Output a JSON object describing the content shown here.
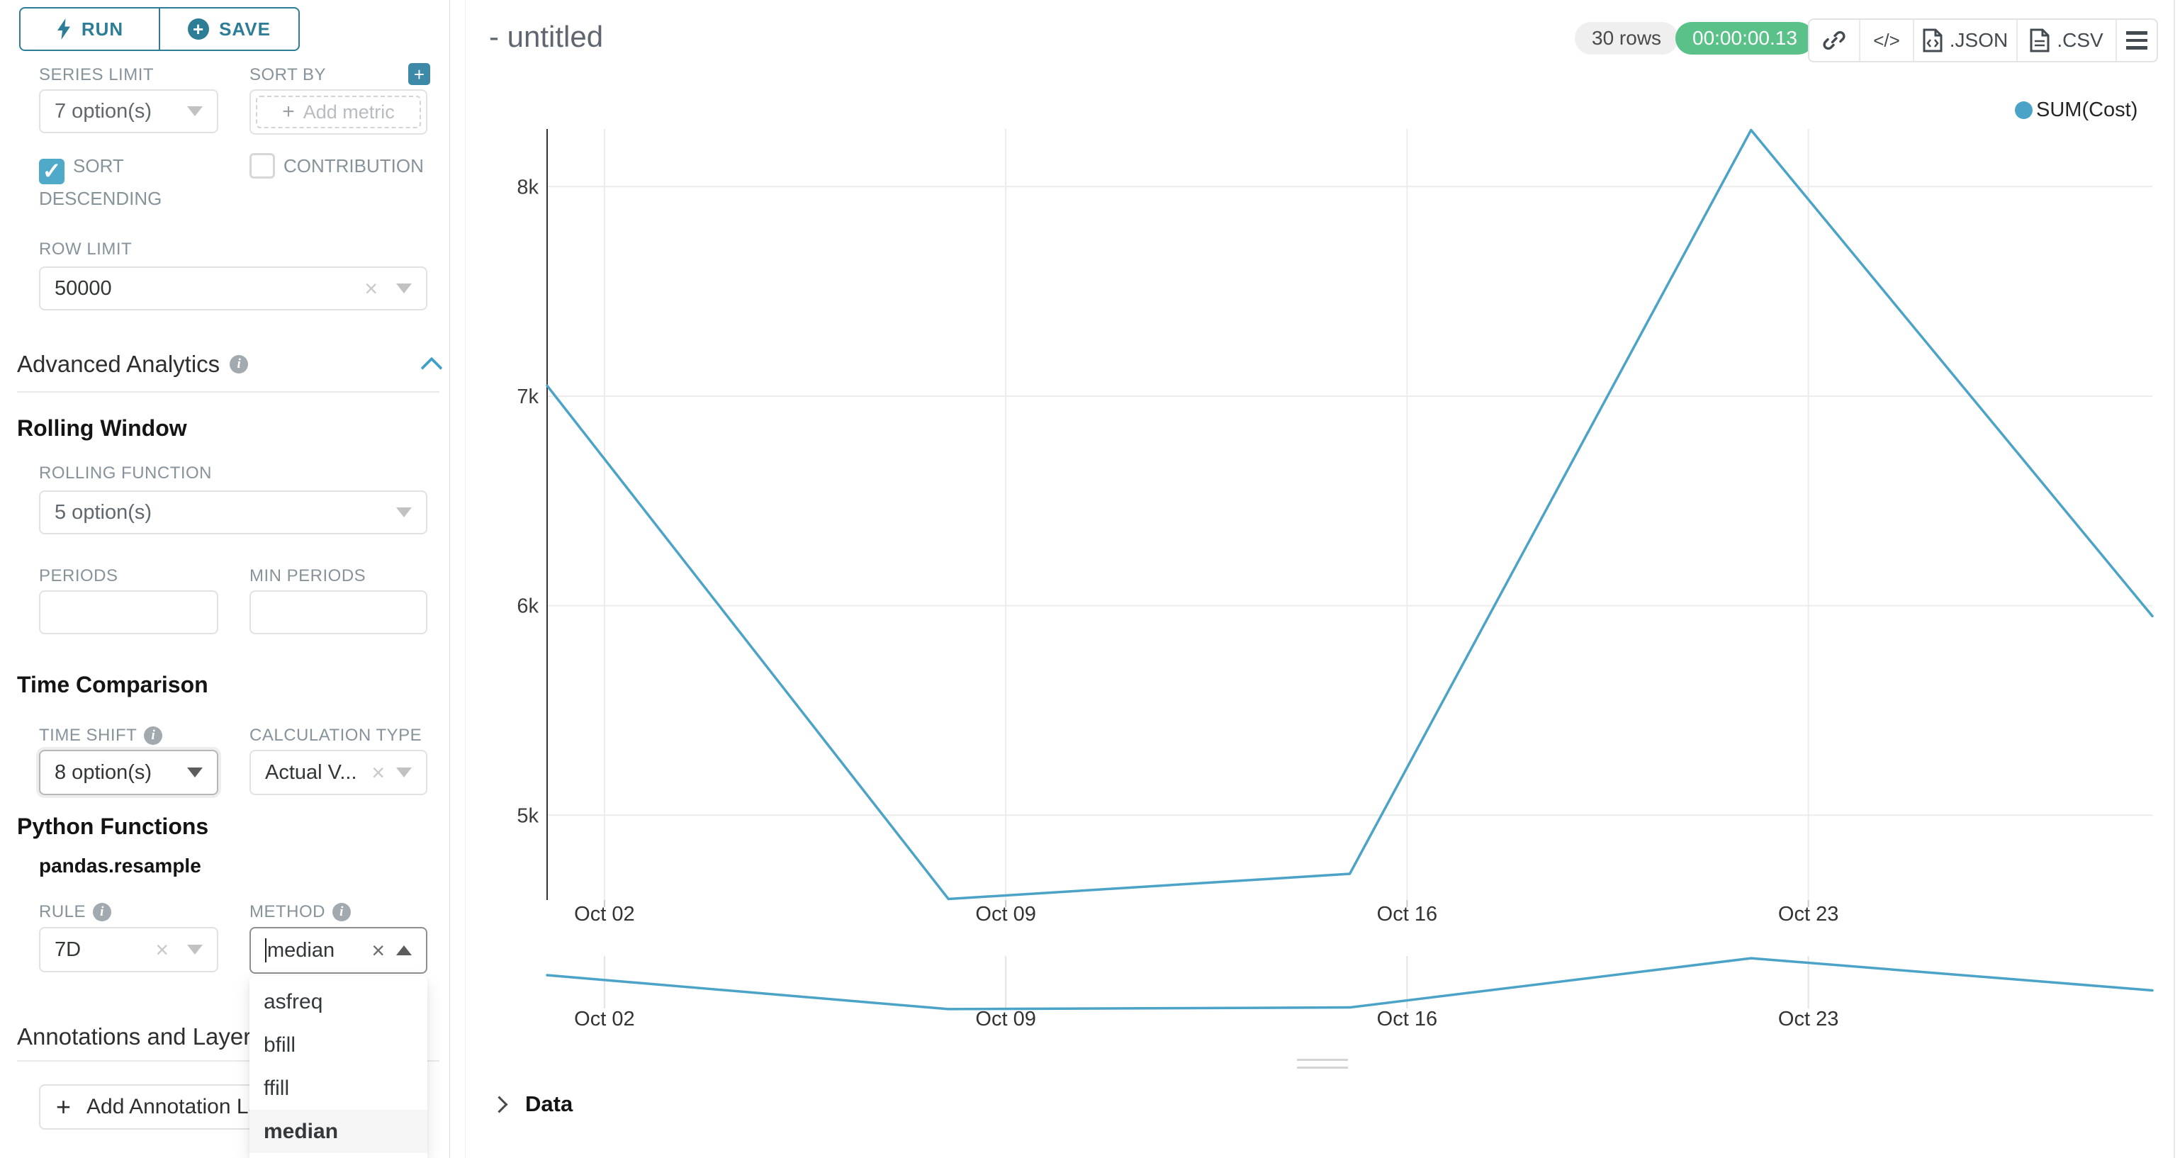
{
  "controls": {
    "run": {
      "label": "RUN"
    },
    "save": {
      "label": "SAVE"
    },
    "series_limit": {
      "label": "SERIES LIMIT",
      "value": "7 option(s)"
    },
    "sort_by": {
      "label": "SORT BY",
      "placeholder": "Add metric"
    },
    "sort_descending": {
      "label": "SORT DESCENDING",
      "checked": true,
      "check_glyph": "✓"
    },
    "contribution": {
      "label": "CONTRIBUTION",
      "checked": false
    },
    "row_limit": {
      "label": "ROW LIMIT",
      "value": "50000"
    },
    "advanced_analytics": {
      "title": "Advanced Analytics"
    },
    "rolling_window": {
      "title": "Rolling Window"
    },
    "rolling_function": {
      "label": "ROLLING FUNCTION",
      "value": "5 option(s)"
    },
    "periods": {
      "label": "PERIODS",
      "value": ""
    },
    "min_periods": {
      "label": "MIN PERIODS",
      "value": ""
    },
    "time_comparison": {
      "title": "Time Comparison"
    },
    "time_shift": {
      "label": "TIME SHIFT",
      "value": "8 option(s)"
    },
    "calculation_type": {
      "label": "CALCULATION TYPE",
      "value": "Actual V..."
    },
    "python_functions": {
      "title": "Python Functions"
    },
    "resample_title": "pandas.resample",
    "rule": {
      "label": "RULE",
      "value": "7D"
    },
    "method": {
      "label": "METHOD",
      "value": "median"
    },
    "method_options": [
      "asfreq",
      "bfill",
      "ffill",
      "median"
    ],
    "method_selected": "median",
    "annotations": {
      "title": "Annotations and Layers",
      "button_label": "Add Annotation Layer"
    }
  },
  "header": {
    "title": "- untitled",
    "rows_badge": "30 rows",
    "timer_badge": "00:00:00.13",
    "timer_color": "#5AC189",
    "code_label": "</>",
    "json_label": ".JSON",
    "csv_label": ".CSV"
  },
  "chart_data": {
    "type": "line",
    "title": "",
    "legend": [
      {
        "name": "SUM(Cost)",
        "color": "#4BA3C7"
      }
    ],
    "series": [
      {
        "name": "SUM(Cost)",
        "color": "#4BA3C7",
        "points": [
          {
            "day": 0,
            "label": "Oct 01",
            "value": 7050
          },
          {
            "day": 7,
            "label": "Oct 08",
            "value": 4600
          },
          {
            "day": 14,
            "label": "Oct 15",
            "value": 4720
          },
          {
            "day": 21,
            "label": "Oct 22",
            "value": 8270
          },
          {
            "day": 28,
            "label": "Oct 29",
            "value": 5950
          }
        ]
      }
    ],
    "x_ticks": [
      {
        "day": 1,
        "label": "Oct 02"
      },
      {
        "day": 8,
        "label": "Oct 09"
      },
      {
        "day": 15,
        "label": "Oct 16"
      },
      {
        "day": 22,
        "label": "Oct 23"
      }
    ],
    "y_ticks": [
      {
        "value": 5000,
        "label": "5k"
      },
      {
        "value": 6000,
        "label": "6k"
      },
      {
        "value": 7000,
        "label": "7k"
      },
      {
        "value": 8000,
        "label": "8k"
      }
    ],
    "y_domain": [
      4595,
      8275
    ],
    "day_span": 28,
    "grid": true,
    "has_mini_preview": true
  }
}
